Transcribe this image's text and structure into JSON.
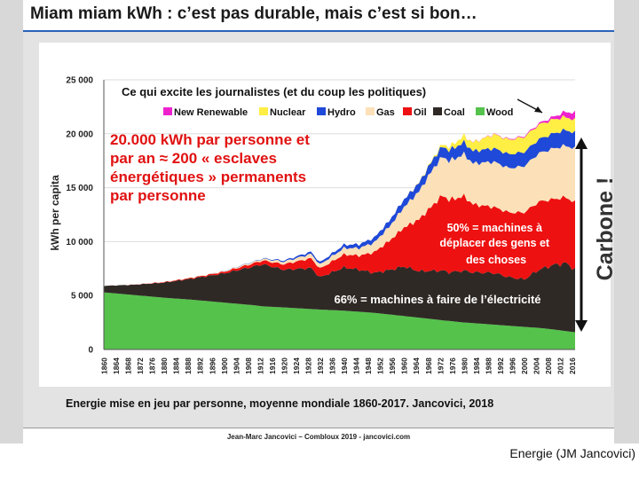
{
  "slide": {
    "title": "Miam miam kWh : c’est pas durable, mais c’est si bon…",
    "caption": "Energie mise en jeu par personne, moyenne mondiale 1860-2017. Jancovici, 2018",
    "footer": "Jean-Marc Jancovici – Combloux 2019 - jancovici.com",
    "credit": "Energie (JM Jancovici)"
  },
  "colors": {
    "new_renewable": "#ee22cc",
    "nuclear": "#ffee44",
    "hydro": "#1f49d8",
    "gas": "#fbe0b8",
    "oil": "#ee1111",
    "coal": "#2f2925",
    "wood": "#55c24c",
    "red_text": "#e11111",
    "accent": "#2a62b8"
  },
  "chart_data": {
    "type": "area",
    "ylabel": "kWh per capita",
    "ylim": [
      0,
      25000
    ],
    "yticks": [
      "0",
      "5 000",
      "10 000",
      "15 000",
      "20 000",
      "25 000"
    ],
    "xlim": [
      1860,
      2017
    ],
    "xticks": [
      "1860",
      "1864",
      "1868",
      "1872",
      "1876",
      "1880",
      "1884",
      "1888",
      "1892",
      "1896",
      "1900",
      "1904",
      "1908",
      "1912",
      "1916",
      "1920",
      "1924",
      "1928",
      "1932",
      "1936",
      "1940",
      "1944",
      "1948",
      "1952",
      "1956",
      "1960",
      "1964",
      "1968",
      "1972",
      "1976",
      "1980",
      "1984",
      "1988",
      "1992",
      "1996",
      "2000",
      "2004",
      "2008",
      "2012",
      "2016"
    ],
    "legend_title": "Ce qui excite les journalistes (et du coup les politiques)",
    "legend_position": "top",
    "x": [
      1860,
      1870,
      1880,
      1890,
      1900,
      1910,
      1913,
      1920,
      1929,
      1932,
      1940,
      1945,
      1950,
      1955,
      1960,
      1965,
      1970,
      1973,
      1975,
      1980,
      1983,
      1990,
      1995,
      2000,
      2005,
      2010,
      2014,
      2017
    ],
    "series": [
      {
        "name": "Wood",
        "key": "wood",
        "values": [
          5300,
          5050,
          4800,
          4600,
          4350,
          4100,
          4000,
          3900,
          3750,
          3700,
          3600,
          3500,
          3400,
          3250,
          3100,
          2950,
          2800,
          2700,
          2650,
          2500,
          2450,
          2300,
          2200,
          2100,
          2000,
          1850,
          1700,
          1600
        ]
      },
      {
        "name": "Coal",
        "key": "coal",
        "values": [
          600,
          950,
          1400,
          2000,
          2700,
          3600,
          3900,
          3500,
          3800,
          3000,
          4000,
          3900,
          3700,
          4100,
          4600,
          4300,
          4500,
          4600,
          4500,
          4800,
          4700,
          4800,
          4500,
          4400,
          5400,
          6000,
          6300,
          5800
        ]
      },
      {
        "name": "Oil",
        "key": "oil",
        "values": [
          0,
          10,
          40,
          80,
          150,
          300,
          350,
          500,
          900,
          800,
          1200,
          1300,
          1900,
          2700,
          3600,
          4800,
          6200,
          7000,
          6700,
          6900,
          6300,
          6100,
          6000,
          6200,
          6300,
          6100,
          6100,
          6200
        ]
      },
      {
        "name": "Gas",
        "key": "gas",
        "values": [
          0,
          0,
          10,
          30,
          60,
          130,
          150,
          250,
          400,
          380,
          600,
          700,
          900,
          1300,
          1900,
          2600,
          3400,
          3600,
          3600,
          3900,
          3800,
          4200,
          4100,
          4300,
          4500,
          4700,
          4800,
          5000
        ]
      },
      {
        "name": "Hydro",
        "key": "hydro",
        "values": [
          0,
          0,
          0,
          0,
          10,
          30,
          40,
          100,
          200,
          200,
          300,
          350,
          450,
          550,
          700,
          800,
          900,
          950,
          1000,
          1100,
          1150,
          1250,
          1300,
          1300,
          1300,
          1400,
          1450,
          1450
        ]
      },
      {
        "name": "Nuclear",
        "key": "nuclear",
        "values": [
          0,
          0,
          0,
          0,
          0,
          0,
          0,
          0,
          0,
          0,
          0,
          0,
          0,
          0,
          5,
          30,
          100,
          230,
          300,
          600,
          800,
          1300,
          1350,
          1400,
          1350,
          1300,
          1200,
          1200
        ]
      },
      {
        "name": "New Renewable",
        "key": "new_renewable",
        "values": [
          0,
          0,
          0,
          0,
          0,
          0,
          0,
          0,
          0,
          0,
          0,
          0,
          0,
          0,
          0,
          0,
          0,
          0,
          0,
          0,
          10,
          30,
          50,
          80,
          120,
          250,
          500,
          650
        ]
      }
    ],
    "annotations": {
      "big_red": "20.000 kWh par personne et par an ≈ 200 « esclaves énergétiques » permanents par personne",
      "oil_share": "50% = machines à déplacer des gens et des choses",
      "elec_share": "66% = machines à faire de l’électricité",
      "carbone": "Carbone !"
    }
  }
}
